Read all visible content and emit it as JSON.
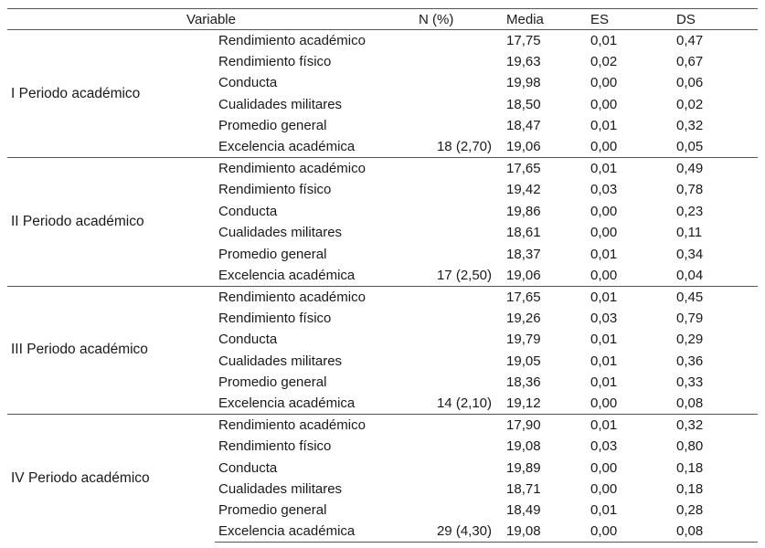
{
  "table": {
    "headers": {
      "variable": "Variable",
      "n": "N (%)",
      "media": "Media",
      "es": "ES",
      "ds": "DS"
    },
    "groups": [
      {
        "period": "I Periodo académico",
        "rows": [
          {
            "variable": "Rendimiento académico",
            "n": "",
            "media": "17,75",
            "es": "0,01",
            "ds": "0,47"
          },
          {
            "variable": "Rendimiento físico",
            "n": "",
            "media": "19,63",
            "es": "0,02",
            "ds": "0,67"
          },
          {
            "variable": "Conducta",
            "n": "",
            "media": "19,98",
            "es": "0,00",
            "ds": "0,06"
          },
          {
            "variable": "Cualidades militares",
            "n": "",
            "media": "18,50",
            "es": "0,00",
            "ds": "0,02"
          },
          {
            "variable": "Promedio general",
            "n": "",
            "media": "18,47",
            "es": "0,01",
            "ds": "0,32"
          },
          {
            "variable": "Excelencia académica",
            "n": "18 (2,70)",
            "media": "19,06",
            "es": "0,00",
            "ds": "0,05"
          }
        ]
      },
      {
        "period": "II Periodo académico",
        "rows": [
          {
            "variable": "Rendimiento académico",
            "n": "",
            "media": "17,65",
            "es": "0,01",
            "ds": "0,49"
          },
          {
            "variable": "Rendimiento físico",
            "n": "",
            "media": "19,42",
            "es": "0,03",
            "ds": "0,78"
          },
          {
            "variable": "Conducta",
            "n": "",
            "media": "19,86",
            "es": "0,00",
            "ds": "0,23"
          },
          {
            "variable": "Cualidades militares",
            "n": "",
            "media": "18,61",
            "es": "0,00",
            "ds": "0,11"
          },
          {
            "variable": "Promedio general",
            "n": "",
            "media": "18,37",
            "es": "0,01",
            "ds": "0,34"
          },
          {
            "variable": "Excelencia académica",
            "n": "17 (2,50)",
            "media": "19,06",
            "es": "0,00",
            "ds": "0,04"
          }
        ]
      },
      {
        "period": "III Periodo académico",
        "rows": [
          {
            "variable": "Rendimiento académico",
            "n": "",
            "media": "17,65",
            "es": "0,01",
            "ds": "0,45"
          },
          {
            "variable": "Rendimiento físico",
            "n": "",
            "media": "19,26",
            "es": "0,03",
            "ds": "0,79"
          },
          {
            "variable": "Conducta",
            "n": "",
            "media": "19,79",
            "es": "0,01",
            "ds": "0,29"
          },
          {
            "variable": "Cualidades militares",
            "n": "",
            "media": "19,05",
            "es": "0,01",
            "ds": "0,36"
          },
          {
            "variable": "Promedio general",
            "n": "",
            "media": "18,36",
            "es": "0,01",
            "ds": "0,33"
          },
          {
            "variable": "Excelencia académica",
            "n": "14 (2,10)",
            "media": "19,12",
            "es": "0,00",
            "ds": "0,08"
          }
        ]
      },
      {
        "period": "IV Periodo académico",
        "rows": [
          {
            "variable": "Rendimiento académico",
            "n": "",
            "media": "17,90",
            "es": "0,01",
            "ds": "0,32"
          },
          {
            "variable": "Rendimiento físico",
            "n": "",
            "media": "19,08",
            "es": "0,03",
            "ds": "0,80"
          },
          {
            "variable": "Conducta",
            "n": "",
            "media": "19,89",
            "es": "0,00",
            "ds": "0,18"
          },
          {
            "variable": "Cualidades militares",
            "n": "",
            "media": "18,71",
            "es": "0,00",
            "ds": "0,18"
          },
          {
            "variable": "Promedio general",
            "n": "",
            "media": "18,49",
            "es": "0,01",
            "ds": "0,28"
          },
          {
            "variable": "Excelencia académica",
            "n": "29 (4,30)",
            "media": "19,08",
            "es": "0,00",
            "ds": "0,08"
          }
        ]
      }
    ]
  }
}
